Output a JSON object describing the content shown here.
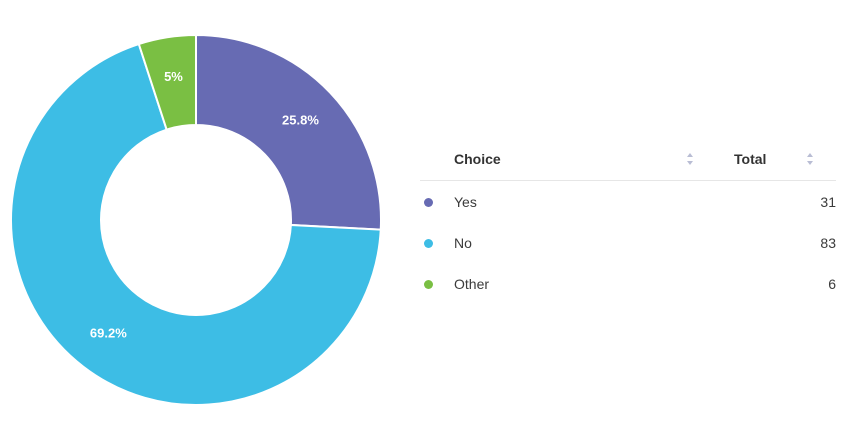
{
  "chart_data": {
    "type": "pie",
    "style": "donut",
    "title": "",
    "categories": [
      "Yes",
      "No",
      "Other"
    ],
    "values": [
      31,
      83,
      6
    ],
    "percent_labels": [
      "25.8%",
      "69.2%",
      "5%"
    ],
    "colors": [
      "#676bb3",
      "#3dbde5",
      "#7abf43"
    ],
    "legend": "table-right"
  },
  "table": {
    "headers": {
      "choice": "Choice",
      "total": "Total"
    },
    "rows": [
      {
        "choice": "Yes",
        "total": "31",
        "color": "#676bb3"
      },
      {
        "choice": "No",
        "total": "83",
        "color": "#3dbde5"
      },
      {
        "choice": "Other",
        "total": "6",
        "color": "#7abf43"
      }
    ]
  },
  "icons": {
    "sort": "sort-icon"
  }
}
